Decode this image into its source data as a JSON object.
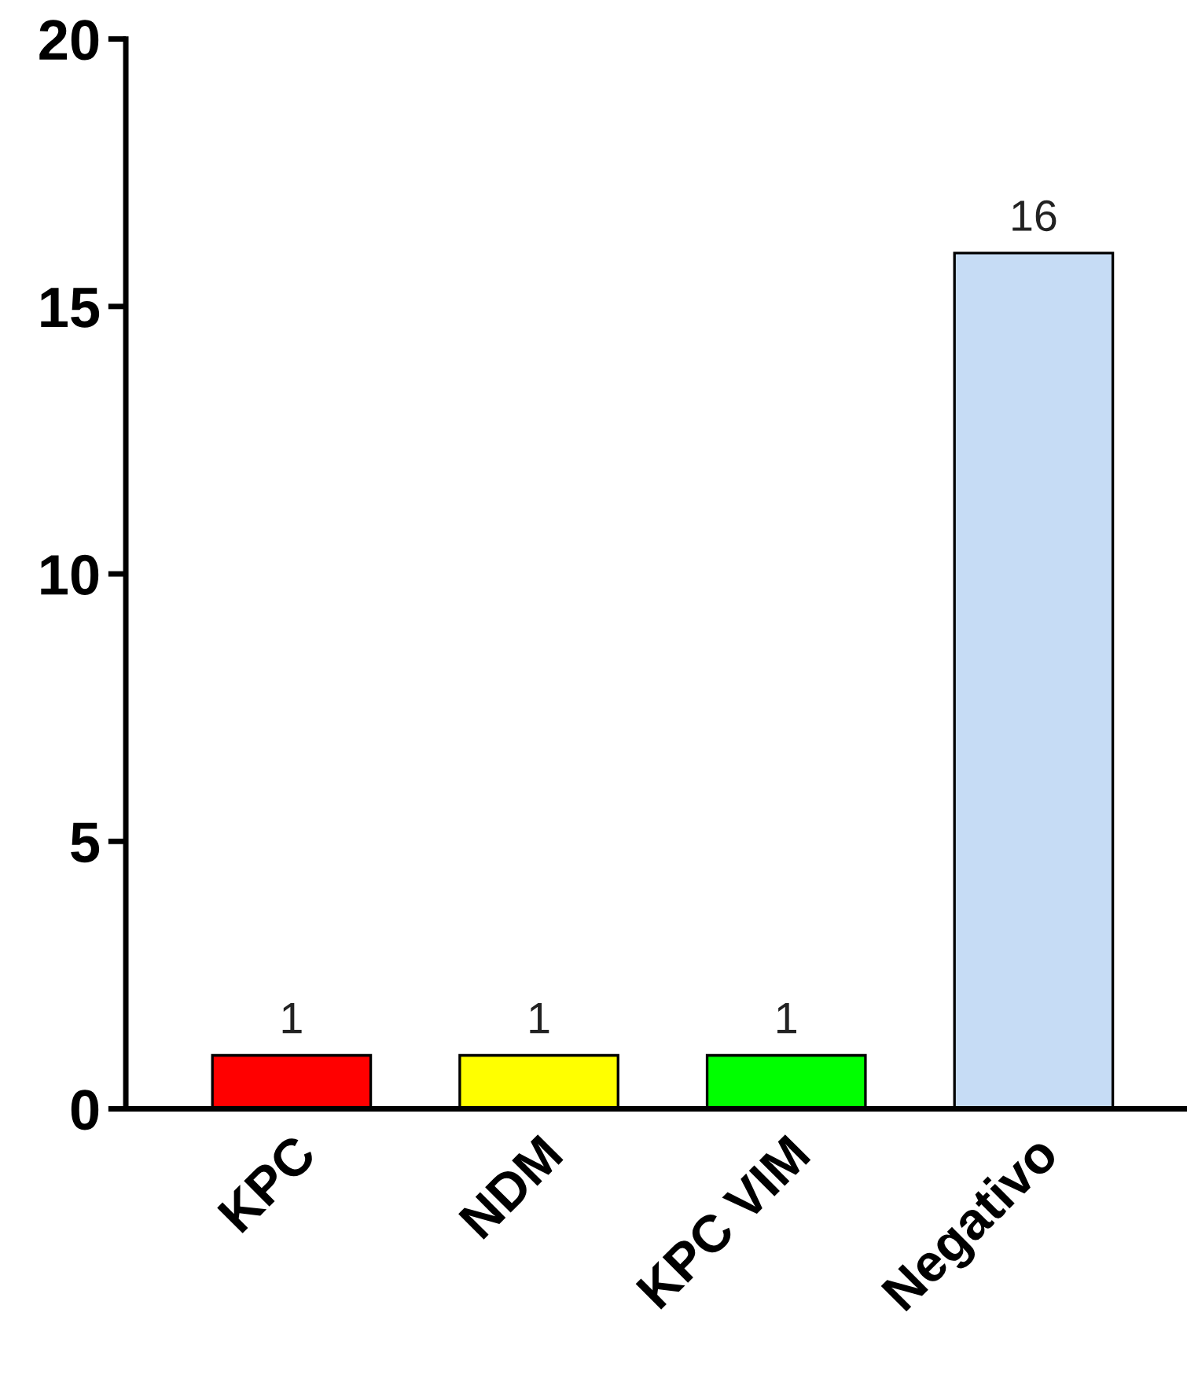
{
  "chart_data": {
    "type": "bar",
    "categories": [
      "KPC",
      "NDM",
      "KPC VIM",
      "Negativo"
    ],
    "values": [
      1,
      1,
      1,
      16
    ],
    "colors": [
      "#ff0000",
      "#ffff00",
      "#00ff00",
      "#c6dcf5"
    ],
    "ylim": [
      0,
      20
    ],
    "yticks": [
      0,
      5,
      10,
      15,
      20
    ],
    "data_labels": true,
    "grid": false,
    "legend": false
  }
}
